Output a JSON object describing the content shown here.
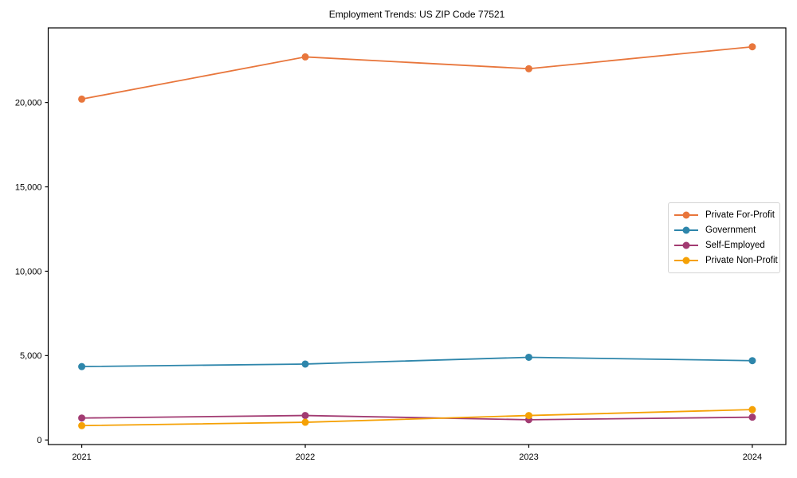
{
  "chart_data": {
    "type": "line",
    "title": "Employment Trends: US ZIP Code 77521",
    "x": [
      2021,
      2022,
      2023,
      2024
    ],
    "x_tick_labels": [
      "2021",
      "2022",
      "2023",
      "2024"
    ],
    "y_ticks": [
      0,
      5000,
      10000,
      15000,
      20000
    ],
    "y_tick_labels": [
      "0",
      "5,000",
      "10,000",
      "15,000",
      "20,000"
    ],
    "xlim": [
      2020.85,
      2024.15
    ],
    "ylim": [
      -270,
      24420
    ],
    "grid": false,
    "legend_position": "center-right",
    "marker": "circle",
    "background_color": "#ffffff",
    "axis_color": "#000000",
    "series": [
      {
        "name": "Private For-Profit",
        "color": "#E8763C",
        "values": [
          20200,
          22700,
          22000,
          23300
        ]
      },
      {
        "name": "Government",
        "color": "#2E86AB",
        "values": [
          4350,
          4500,
          4900,
          4700
        ]
      },
      {
        "name": "Self-Employed",
        "color": "#A23B72",
        "values": [
          1300,
          1450,
          1200,
          1350
        ]
      },
      {
        "name": "Private Non-Profit",
        "color": "#F5A105",
        "values": [
          850,
          1050,
          1450,
          1800
        ]
      }
    ]
  }
}
